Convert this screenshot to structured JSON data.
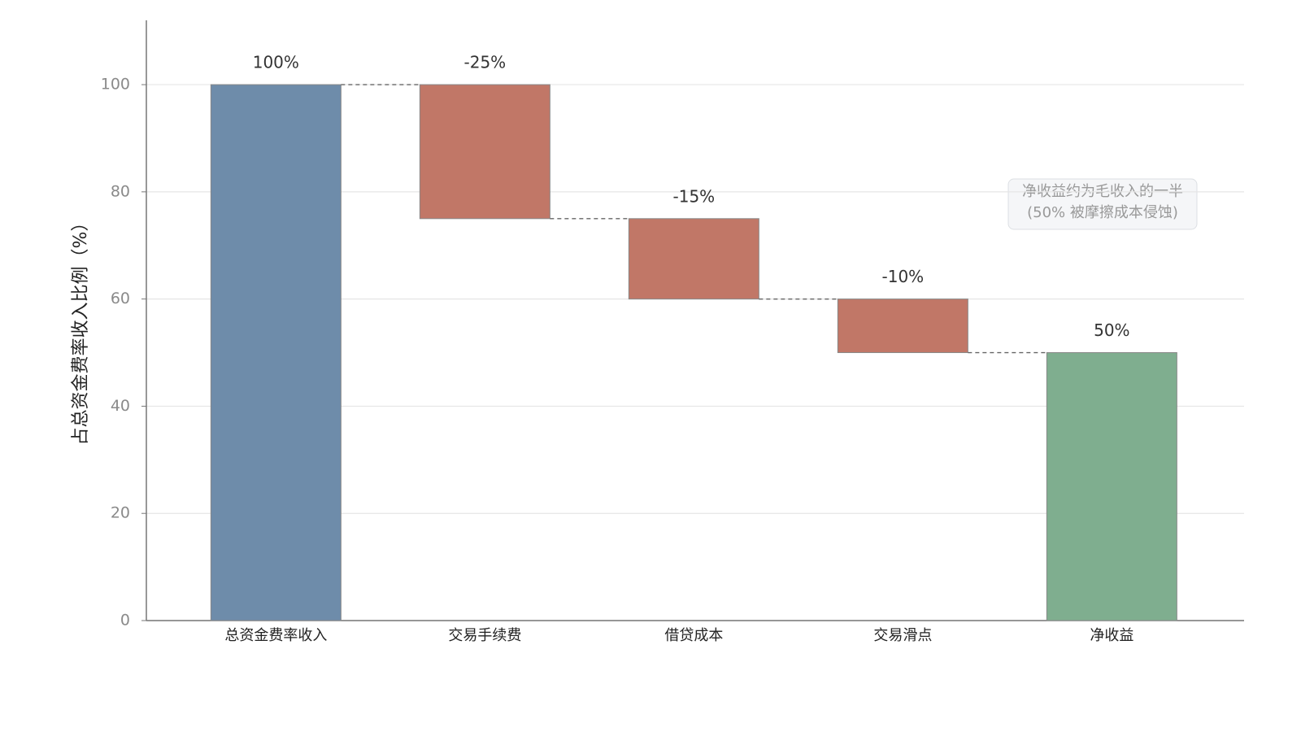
{
  "chart_data": {
    "type": "waterfall",
    "ylabel": "占总资金费率收入比例（%）",
    "categories": [
      "总资金费率收入",
      "交易手续费",
      "借贷成本",
      "交易滑点",
      "净收益"
    ],
    "values": [
      100,
      -25,
      -15,
      -10,
      50
    ],
    "value_labels": [
      "100%",
      "-25%",
      "-15%",
      "-10%",
      "50%"
    ],
    "colors": [
      "#6e8caa",
      "#c17767",
      "#c17767",
      "#c17767",
      "#7fae8f"
    ],
    "ylim": [
      0,
      112
    ],
    "yticks": [
      0,
      20,
      40,
      60,
      80,
      100
    ],
    "grid": true,
    "annotation": [
      "净收益约为毛收入的一半",
      "(50% 被摩擦成本侵蚀)"
    ]
  }
}
